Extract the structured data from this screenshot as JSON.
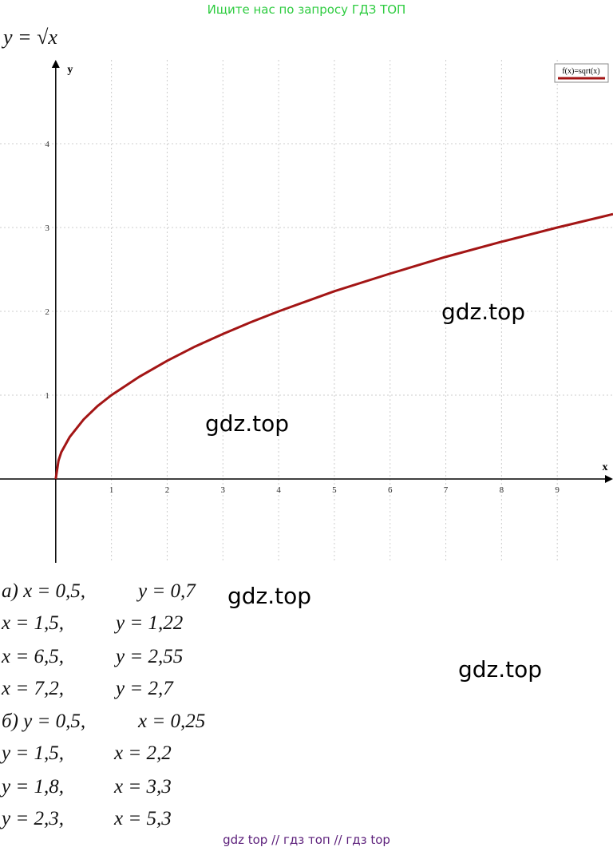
{
  "header": "Ищите нас по запросу ГДЗ ТОП",
  "formula": "y = √x",
  "chart_data": {
    "type": "line",
    "legend": "f(x)=sqrt(x)",
    "x_label": "x",
    "y_label": "y",
    "x": [
      0,
      0.05,
      0.1,
      0.25,
      0.5,
      0.75,
      1,
      1.5,
      2,
      2.5,
      3,
      3.5,
      4,
      5,
      6,
      7,
      8,
      9,
      10
    ],
    "series": [
      {
        "name": "f(x)=sqrt(x)",
        "color": "#a31515",
        "values": [
          0,
          0.22,
          0.32,
          0.5,
          0.71,
          0.87,
          1,
          1.22,
          1.41,
          1.58,
          1.73,
          1.87,
          2,
          2.24,
          2.45,
          2.65,
          2.83,
          3,
          3.16
        ]
      }
    ],
    "xlim": [
      -1,
      10
    ],
    "ylim": [
      -1,
      5
    ],
    "xticks": [
      1,
      2,
      3,
      4,
      5,
      6,
      7,
      8,
      9
    ],
    "yticks": [
      1,
      2,
      3,
      4
    ],
    "grid": true
  },
  "answers": [
    {
      "left": "а) x = 0,5,",
      "right": "y = 0,7"
    },
    {
      "left": "x = 1,5,",
      "right": "y = 1,22"
    },
    {
      "left": "x = 6,5,",
      "right": "y = 2,55"
    },
    {
      "left": "x = 7,2,",
      "right": "y = 2,7"
    },
    {
      "left": "б) y = 0,5,",
      "right": "x = 0,25"
    },
    {
      "left": "y = 1,5,",
      "right": "x = 2,2"
    },
    {
      "left": "y = 1,8,",
      "right": "x = 3,3"
    },
    {
      "left": "y = 2,3,",
      "right": "x = 5,3"
    }
  ],
  "watermarks": [
    "gdz.top",
    "gdz.top",
    "gdz.top",
    "gdz.top"
  ],
  "footer": "gdz top  //  гдз топ  //  гдз top"
}
